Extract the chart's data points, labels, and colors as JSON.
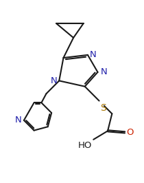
{
  "bg_color": "#ffffff",
  "bond_color": "#1a1a1a",
  "atom_colors": {
    "N": "#2020aa",
    "S": "#aa7700",
    "O": "#cc2200",
    "C": "#1a1a1a"
  },
  "line_width": 1.5,
  "font_size": 9.5,
  "fig_width": 2.1,
  "fig_height": 2.66,
  "dpi": 100,
  "xlim": [
    0,
    10
  ],
  "ylim": [
    0,
    12.7
  ]
}
